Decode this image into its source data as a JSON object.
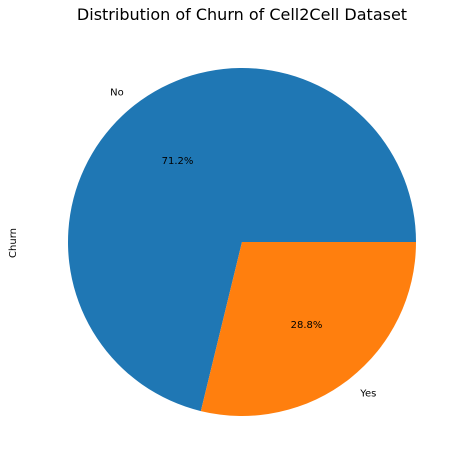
{
  "chart_data": {
    "type": "pie",
    "title": "Distribution of Churn of Cell2Cell Dataset",
    "ylabel": "Churn",
    "slices": [
      {
        "label": "No",
        "value": 71.2,
        "pct_label": "71.2%",
        "color": "#1f77b4"
      },
      {
        "label": "Yes",
        "value": 28.8,
        "pct_label": "28.8%",
        "color": "#ff7f0e"
      }
    ],
    "start_angle": "counterclockwise from 3 o'clock",
    "legend": "none"
  }
}
